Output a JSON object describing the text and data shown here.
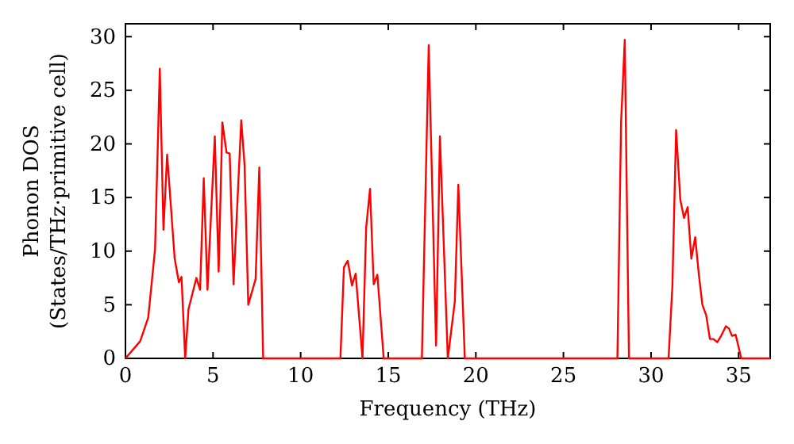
{
  "chart_data": {
    "type": "line",
    "xlabel": "Frequency (THz)",
    "ylabel": "Phonon DOS\n(States/THz·primitive cell)",
    "xlim": [
      0,
      36.8
    ],
    "ylim": [
      0,
      31.2
    ],
    "xticks": [
      0,
      5,
      10,
      15,
      20,
      25,
      30,
      35
    ],
    "yticks": [
      0,
      5,
      10,
      15,
      20,
      25,
      30
    ],
    "grid": false,
    "series": [
      {
        "color": "#ff0000",
        "x": [
          0,
          0.84,
          1.3,
          1.69,
          1.96,
          2.17,
          2.38,
          2.81,
          3.05,
          3.2,
          3.41,
          3.6,
          4.05,
          4.26,
          4.47,
          4.68,
          5.1,
          5.32,
          5.53,
          5.77,
          5.95,
          6.17,
          6.61,
          6.8,
          7.01,
          7.43,
          7.64,
          7.86,
          12.27,
          12.47,
          12.69,
          12.93,
          13.14,
          13.53,
          13.74,
          13.96,
          14.17,
          14.38,
          14.74,
          16.92,
          17.31,
          17.73,
          17.95,
          18.4,
          18.8,
          19.0,
          19.37,
          28.08,
          28.29,
          28.5,
          28.74,
          31.0,
          31.22,
          31.43,
          31.67,
          31.88,
          32.09,
          32.3,
          32.52,
          32.73,
          32.93,
          33.15,
          33.36,
          33.57,
          33.78,
          34.0,
          34.27,
          34.44,
          34.62,
          34.83,
          35.15,
          36.8
        ],
        "values": [
          0,
          1.6,
          3.8,
          10.2,
          27,
          12,
          19,
          9.3,
          7.1,
          7.6,
          0,
          4.6,
          7.5,
          6.4,
          16.8,
          6.4,
          20.7,
          8.1,
          22,
          19.2,
          19.1,
          6.9,
          22.2,
          18,
          5,
          7.4,
          17.8,
          0,
          0,
          8.5,
          9.1,
          6.8,
          7.9,
          0,
          12.2,
          15.8,
          6.9,
          7.8,
          0,
          0,
          29.2,
          1.2,
          20.7,
          0,
          5.3,
          16.2,
          0,
          0,
          22,
          29.7,
          0,
          0,
          6.8,
          21.3,
          14.8,
          13.1,
          14.1,
          9.3,
          11.3,
          7.8,
          5,
          4,
          1.8,
          1.8,
          1.5,
          2.1,
          3,
          2.8,
          2.1,
          2.2,
          0,
          0
        ]
      }
    ]
  }
}
